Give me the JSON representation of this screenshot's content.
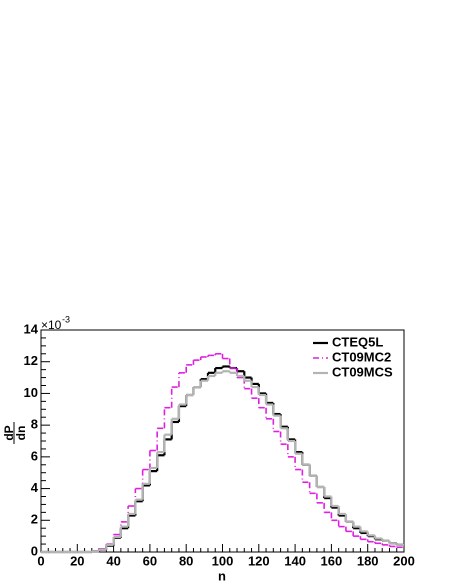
{
  "chart_data": {
    "type": "histogram",
    "xlabel": "n",
    "ylabel_numerator": "dP",
    "ylabel_denominator": "dn",
    "multiplier_label": "×10",
    "multiplier_exponent": "-3",
    "bins": [
      0,
      4,
      8,
      12,
      16,
      20,
      24,
      28,
      32,
      36,
      40,
      44,
      48,
      52,
      56,
      60,
      64,
      68,
      72,
      76,
      80,
      84,
      88,
      92,
      96,
      100,
      104,
      108,
      112,
      116,
      120,
      124,
      128,
      132,
      136,
      140,
      144,
      148,
      152,
      156,
      160,
      164,
      168,
      172,
      176,
      180,
      184,
      188,
      192,
      196,
      200
    ],
    "series": [
      {
        "name": "CTEQ5L",
        "color": "#000000",
        "dash": "solid",
        "width": 2.2,
        "values": [
          0,
          0,
          0,
          0,
          0,
          0,
          0,
          0.05,
          0.15,
          0.4,
          0.9,
          1.5,
          2.3,
          3.2,
          4.2,
          5.1,
          6.1,
          7.1,
          8.2,
          9.2,
          9.9,
          10.4,
          10.9,
          11.3,
          11.6,
          11.7,
          11.6,
          11.4,
          11.0,
          10.6,
          10.0,
          9.4,
          8.7,
          7.9,
          7.1,
          6.3,
          5.5,
          4.8,
          4.1,
          3.4,
          2.8,
          2.3,
          1.9,
          1.5,
          1.2,
          1.0,
          0.8,
          0.7,
          0.55,
          0.45
        ]
      },
      {
        "name": "CT09MC2",
        "color": "#e020e0",
        "dash": "dashdot",
        "width": 1.6,
        "values": [
          0,
          0,
          0,
          0,
          0,
          0,
          0,
          0.05,
          0.2,
          0.5,
          1.1,
          1.9,
          2.9,
          4.0,
          5.2,
          6.4,
          7.8,
          9.1,
          10.4,
          11.3,
          11.8,
          12.1,
          12.3,
          12.4,
          12.5,
          12.2,
          11.6,
          11.0,
          10.3,
          9.7,
          9.1,
          8.4,
          7.6,
          6.8,
          6.0,
          5.2,
          4.4,
          3.7,
          3.1,
          2.5,
          2.0,
          1.6,
          1.3,
          1.0,
          0.8,
          0.65,
          0.55,
          0.45,
          0.35,
          0.3
        ]
      },
      {
        "name": "CT09MCS",
        "color": "#b4b4b4",
        "dash": "solid",
        "width": 2.2,
        "values": [
          0,
          0,
          0,
          0,
          0,
          0,
          0,
          0.05,
          0.15,
          0.45,
          0.95,
          1.6,
          2.4,
          3.3,
          4.3,
          5.3,
          6.3,
          7.4,
          8.4,
          9.3,
          9.9,
          10.4,
          10.8,
          11.1,
          11.3,
          11.4,
          11.3,
          11.1,
          10.8,
          10.4,
          9.9,
          9.3,
          8.6,
          7.8,
          7.0,
          6.2,
          5.5,
          4.8,
          4.1,
          3.5,
          2.9,
          2.4,
          1.9,
          1.6,
          1.3,
          1.05,
          0.85,
          0.7,
          0.55,
          0.45
        ]
      }
    ],
    "xlim": [
      0,
      200
    ],
    "xticks": [
      0,
      20,
      40,
      60,
      80,
      100,
      120,
      140,
      160,
      180,
      200
    ],
    "ylim": [
      0,
      14
    ],
    "yticks": [
      0,
      2,
      4,
      6,
      8,
      10,
      12,
      14
    ],
    "legend": "top-right"
  }
}
